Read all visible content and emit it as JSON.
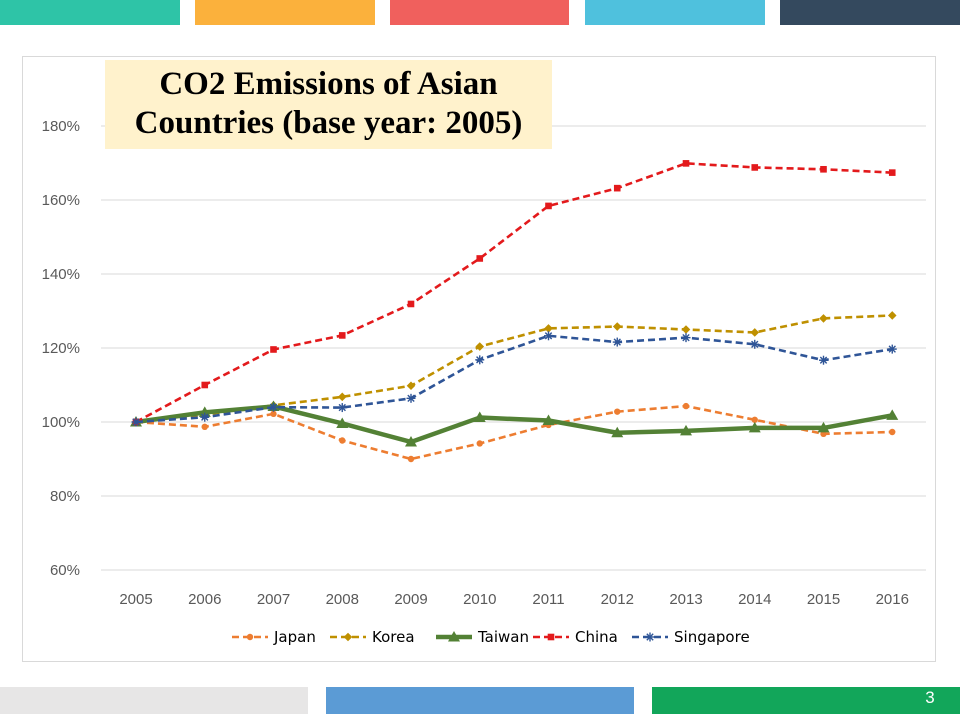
{
  "slide": {
    "page_number": "3",
    "top_bar_colors": [
      "#2ec4a7",
      "#fbb13c",
      "#f0605d",
      "#4fc1dd",
      "#34495e"
    ],
    "bottom_bar_colors": [
      "#e7e6e6",
      "#5b9bd5",
      "#12a65a"
    ]
  },
  "chart_data": {
    "type": "line",
    "title": "CO2 Emissions of Asian Countries (base year: 2005)",
    "title_lines": [
      "CO2 Emissions of Asian",
      "Countries (base year: 2005)"
    ],
    "categories": [
      "2005",
      "2006",
      "2007",
      "2008",
      "2009",
      "2010",
      "2011",
      "2012",
      "2013",
      "2014",
      "2015",
      "2016"
    ],
    "y_tick_labels": [
      "60%",
      "80%",
      "100%",
      "120%",
      "140%",
      "160%",
      "180%"
    ],
    "ylim": [
      60,
      190
    ],
    "y_unit": "%",
    "grid": true,
    "legend_position": "bottom",
    "series": [
      {
        "name": "Japan",
        "color": "#ed7d31",
        "marker": "circle",
        "dashed": true,
        "values": [
          100,
          98.7,
          102.2,
          95,
          90,
          94.2,
          99.2,
          102.8,
          104.3,
          100.6,
          96.8,
          97.3
        ]
      },
      {
        "name": "Korea",
        "color": "#bf9000",
        "marker": "diamond",
        "dashed": true,
        "values": [
          100,
          102,
          104.5,
          106.8,
          109.8,
          120.4,
          125.3,
          125.8,
          125,
          124.2,
          128,
          128.8
        ]
      },
      {
        "name": "Taiwan",
        "color": "#538135",
        "marker": "triangle",
        "dashed": false,
        "values": [
          100,
          102.6,
          104.2,
          99.6,
          94.6,
          101.2,
          100.4,
          97.1,
          97.6,
          98.4,
          98.4,
          101.8
        ]
      },
      {
        "name": "China",
        "color": "#e31a1c",
        "marker": "square",
        "dashed": true,
        "values": [
          100,
          110,
          119.6,
          123.4,
          131.9,
          144.2,
          158.4,
          163.2,
          169.9,
          168.8,
          168.3,
          167.4
        ]
      },
      {
        "name": "Singapore",
        "color": "#2f5597",
        "marker": "star",
        "dashed": true,
        "values": [
          100,
          101.3,
          104,
          103.9,
          106.4,
          116.8,
          123.3,
          121.6,
          122.8,
          121,
          116.7,
          119.7
        ]
      }
    ]
  }
}
